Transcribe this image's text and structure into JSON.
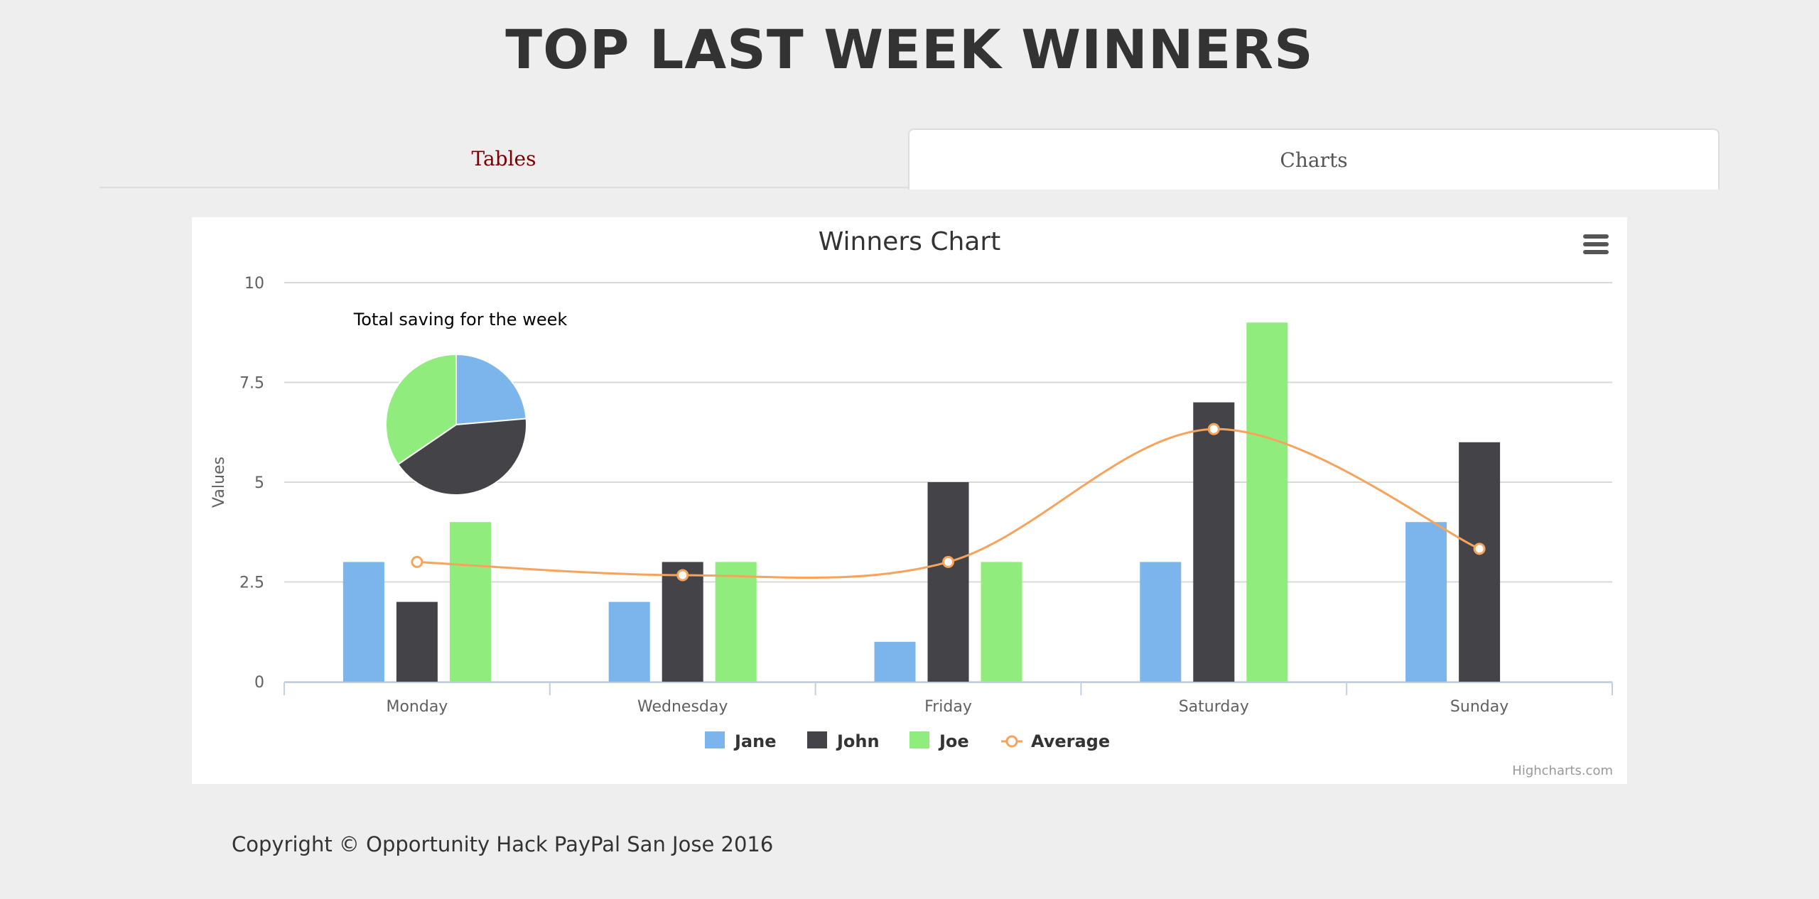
{
  "page": {
    "title": "TOP LAST WEEK WINNERS",
    "footer": "Copyright © Opportunity Hack PayPal San Jose 2016"
  },
  "tabs": [
    {
      "label": "Tables",
      "active": false
    },
    {
      "label": "Charts",
      "active": true
    }
  ],
  "chart_data": {
    "type": "bar",
    "title": "Winners Chart",
    "ylabel": "Values",
    "xlabel": "",
    "ylim": [
      0,
      10
    ],
    "yticks": [
      "0",
      "2.5",
      "5",
      "7.5",
      "10"
    ],
    "ytick_values": [
      0,
      2.5,
      5,
      7.5,
      10
    ],
    "categories": [
      "Monday",
      "Wednesday",
      "Friday",
      "Saturday",
      "Sunday"
    ],
    "series": [
      {
        "name": "Jane",
        "type": "column",
        "color": "#7cb5ec",
        "values": [
          3,
          2,
          1,
          3,
          4
        ]
      },
      {
        "name": "John",
        "type": "column",
        "color": "#434348",
        "values": [
          2,
          3,
          5,
          7,
          6
        ]
      },
      {
        "name": "Joe",
        "type": "column",
        "color": "#90ed7d",
        "values": [
          4,
          3,
          3,
          9,
          0
        ]
      },
      {
        "name": "Average",
        "type": "spline",
        "color": "#f7a35c",
        "values": [
          3,
          2.67,
          3,
          6.33,
          3.33
        ]
      }
    ],
    "pie": {
      "label": "Total saving for the week",
      "slices": [
        {
          "name": "Jane",
          "value": 13,
          "color": "#7cb5ec"
        },
        {
          "name": "John",
          "value": 23,
          "color": "#434348"
        },
        {
          "name": "Joe",
          "value": 19,
          "color": "#90ed7d"
        }
      ]
    },
    "grid": true,
    "legend": "bottom-center",
    "credits": "Highcharts.com"
  }
}
